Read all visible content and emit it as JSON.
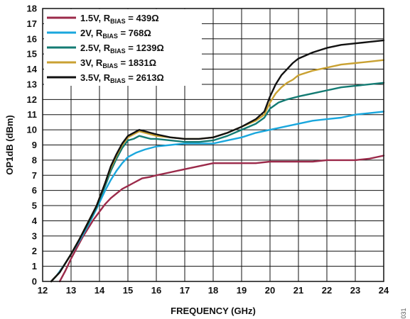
{
  "figure_number": "031",
  "chart_data": {
    "type": "line",
    "xlabel": "FREQUENCY (GHz)",
    "ylabel": "OP1dB (dBm)",
    "xlim": [
      12,
      24
    ],
    "ylim": [
      0,
      18
    ],
    "xticks": [
      12,
      13,
      14,
      15,
      16,
      17,
      18,
      19,
      20,
      21,
      22,
      23,
      24
    ],
    "yticks": [
      0,
      1,
      2,
      3,
      4,
      5,
      6,
      7,
      8,
      9,
      10,
      11,
      12,
      13,
      14,
      15,
      16,
      17,
      18
    ],
    "grid": true,
    "legend_position": "top-left",
    "series": [
      {
        "name": "1.5V, RBIAS = 439Ω",
        "legend": {
          "pre": "1.5V, R",
          "sub": "BIAS",
          "post": " = 439Ω"
        },
        "color": "#9b2a4a",
        "x": [
          12.6,
          12.8,
          13.0,
          13.2,
          13.4,
          13.6,
          13.8,
          14.0,
          14.2,
          14.4,
          14.6,
          14.8,
          15.0,
          15.2,
          15.5,
          15.8,
          16.0,
          16.5,
          17.0,
          17.5,
          18.0,
          18.5,
          19.0,
          19.5,
          20.0,
          20.5,
          21.0,
          21.5,
          22.0,
          22.5,
          23.0,
          23.5,
          24.0
        ],
        "y": [
          0.0,
          0.7,
          1.5,
          2.2,
          2.9,
          3.5,
          4.1,
          4.6,
          5.1,
          5.5,
          5.8,
          6.1,
          6.3,
          6.5,
          6.8,
          6.9,
          7.0,
          7.2,
          7.4,
          7.6,
          7.8,
          7.8,
          7.8,
          7.8,
          7.9,
          7.9,
          7.9,
          7.9,
          8.0,
          8.0,
          8.0,
          8.1,
          8.3
        ]
      },
      {
        "name": "2V, RBIAS = 768Ω",
        "legend": {
          "pre": "2V, R",
          "sub": "BIAS",
          "post": " = 768Ω"
        },
        "color": "#1aa7dd",
        "x": [
          12.3,
          12.5,
          12.8,
          13.0,
          13.3,
          13.6,
          13.9,
          14.0,
          14.2,
          14.4,
          14.6,
          14.8,
          15.0,
          15.3,
          15.6,
          16.0,
          16.5,
          17.0,
          17.5,
          18.0,
          18.5,
          19.0,
          19.5,
          20.0,
          20.5,
          21.0,
          21.5,
          22.0,
          22.5,
          23.0,
          23.5,
          24.0
        ],
        "y": [
          0.0,
          0.4,
          1.2,
          1.8,
          2.7,
          3.7,
          4.8,
          5.2,
          6.0,
          6.7,
          7.3,
          7.8,
          8.2,
          8.5,
          8.7,
          8.9,
          9.0,
          9.1,
          9.1,
          9.1,
          9.3,
          9.5,
          9.8,
          10.0,
          10.2,
          10.4,
          10.6,
          10.7,
          10.8,
          11.0,
          11.1,
          11.2
        ]
      },
      {
        "name": "2.5V, RBIAS = 1239Ω",
        "legend": {
          "pre": "2.5V, R",
          "sub": "BIAS",
          "post": " = 1239Ω"
        },
        "color": "#137b73",
        "x": [
          12.3,
          12.6,
          13.0,
          13.3,
          13.6,
          13.9,
          14.0,
          14.2,
          14.4,
          14.6,
          14.8,
          15.0,
          15.2,
          15.4,
          15.6,
          15.8,
          16.0,
          16.5,
          17.0,
          17.5,
          18.0,
          18.5,
          19.0,
          19.5,
          19.8,
          20.0,
          20.3,
          20.6,
          21.0,
          21.5,
          22.0,
          22.5,
          23.0,
          23.5,
          24.0
        ],
        "y": [
          0.0,
          0.6,
          1.8,
          2.8,
          3.8,
          4.9,
          5.4,
          6.3,
          7.3,
          8.1,
          8.8,
          9.3,
          9.4,
          9.6,
          9.5,
          9.4,
          9.4,
          9.3,
          9.2,
          9.2,
          9.3,
          9.6,
          10.0,
          10.4,
          10.8,
          11.4,
          11.8,
          12.0,
          12.2,
          12.4,
          12.6,
          12.8,
          12.9,
          13.0,
          13.1
        ]
      },
      {
        "name": "3V, RBIAS = 1831Ω",
        "legend": {
          "pre": "3V, R",
          "sub": "BIAS",
          "post": " = 1831Ω"
        },
        "color": "#c9a132",
        "x": [
          12.3,
          12.6,
          13.0,
          13.3,
          13.6,
          13.9,
          14.0,
          14.2,
          14.4,
          14.6,
          14.8,
          15.0,
          15.2,
          15.4,
          15.6,
          15.8,
          16.0,
          16.5,
          17.0,
          17.5,
          18.0,
          18.5,
          19.0,
          19.5,
          19.8,
          20.0,
          20.2,
          20.4,
          20.6,
          20.8,
          21.0,
          21.5,
          22.0,
          22.5,
          23.0,
          23.5,
          24.0
        ],
        "y": [
          0.0,
          0.6,
          1.8,
          2.8,
          3.9,
          5.0,
          5.5,
          6.5,
          7.5,
          8.3,
          9.0,
          9.5,
          9.7,
          9.9,
          9.8,
          9.7,
          9.6,
          9.5,
          9.4,
          9.4,
          9.5,
          9.8,
          10.2,
          10.6,
          11.0,
          11.8,
          12.4,
          12.8,
          13.1,
          13.3,
          13.6,
          13.9,
          14.1,
          14.3,
          14.4,
          14.5,
          14.6
        ]
      },
      {
        "name": "3.5V, RBIAS = 2613Ω",
        "legend": {
          "pre": "3.5V, R",
          "sub": "BIAS",
          "post": " = 2613Ω"
        },
        "color": "#111111",
        "x": [
          12.3,
          12.6,
          13.0,
          13.3,
          13.6,
          13.9,
          14.0,
          14.2,
          14.4,
          14.6,
          14.8,
          15.0,
          15.2,
          15.4,
          15.6,
          15.8,
          16.0,
          16.5,
          17.0,
          17.5,
          18.0,
          18.5,
          19.0,
          19.5,
          19.8,
          20.0,
          20.2,
          20.4,
          20.6,
          20.8,
          21.0,
          21.5,
          22.0,
          22.5,
          23.0,
          23.5,
          24.0
        ],
        "y": [
          0.0,
          0.6,
          1.8,
          2.8,
          3.9,
          5.0,
          5.5,
          6.5,
          7.6,
          8.4,
          9.1,
          9.6,
          9.8,
          10.0,
          9.9,
          9.8,
          9.7,
          9.5,
          9.4,
          9.4,
          9.5,
          9.8,
          10.2,
          10.7,
          11.2,
          12.2,
          13.0,
          13.6,
          14.0,
          14.4,
          14.7,
          15.1,
          15.4,
          15.6,
          15.7,
          15.8,
          15.9
        ]
      }
    ]
  }
}
